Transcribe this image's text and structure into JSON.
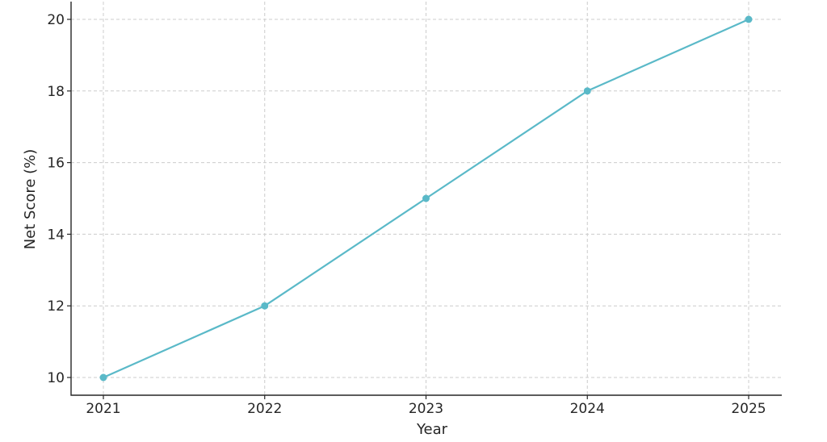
{
  "chart_data": {
    "type": "line",
    "title": "",
    "xlabel": "Year",
    "ylabel": "Net Score (%)",
    "x": [
      "2021",
      "2022",
      "2023",
      "2024",
      "2025"
    ],
    "series": [
      {
        "values": [
          10,
          12,
          15,
          18,
          20
        ],
        "color": "#5ab9c8"
      }
    ],
    "ylim": [
      9.5,
      20.5
    ],
    "yticks": [
      10,
      12,
      14,
      16,
      18,
      20
    ],
    "grid": true,
    "legend": "none"
  }
}
